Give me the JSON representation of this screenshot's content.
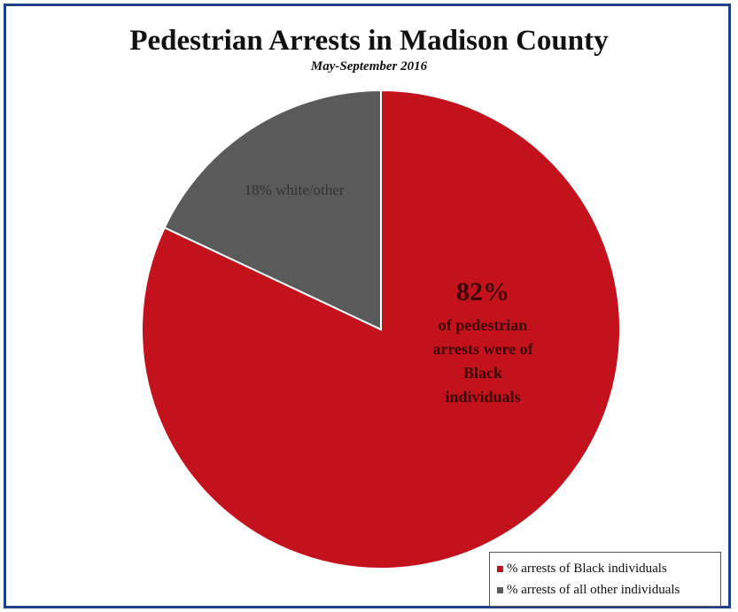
{
  "chart_data": {
    "type": "pie",
    "title": "Pedestrian Arrests in Madison County",
    "subtitle": "May-September 2016",
    "slices": [
      {
        "name": "% arrests of Black individuals",
        "value": 82,
        "color": "#c4121d"
      },
      {
        "name": "% arrests of all other individuals",
        "value": 18,
        "color": "#5a5a5a"
      }
    ],
    "labels": {
      "black_pct": "82%",
      "black_text": [
        "of pedestrian",
        "arrests were of",
        "Black",
        "individuals"
      ],
      "other_text": "18% white/other"
    },
    "legend_position": "bottom-right"
  }
}
